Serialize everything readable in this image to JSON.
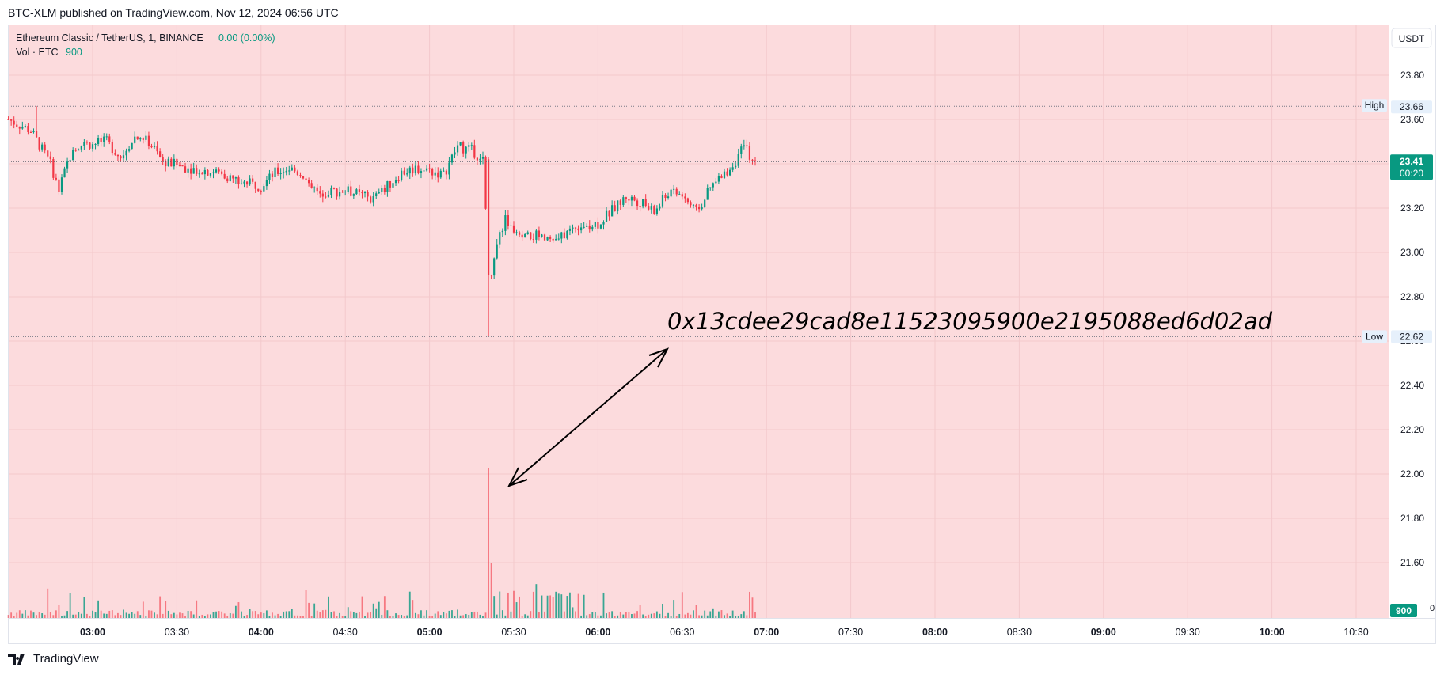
{
  "header": {
    "published": "BTC-XLM published on TradingView.com, Nov 12, 2024 06:56 UTC"
  },
  "legend": {
    "symbol": "Ethereum Classic / TetherUS, 1, BINANCE",
    "change": "0.00 (0.00%)",
    "volume_label": "Vol · ETC",
    "volume_value": "900"
  },
  "currency": "USDT",
  "footer": {
    "brand": "TradingView"
  },
  "annotation": {
    "text": "0x13cdee29cad8e11523095900e2195088ed6d02ad"
  },
  "colors": {
    "up": "#089981",
    "down": "#f23645",
    "background": "#fcdbdd",
    "accent": "#2962ff"
  },
  "chart_data": {
    "type": "candlestick",
    "interval": "1 minute",
    "price_axis": {
      "ylim": [
        21.4,
        23.93
      ],
      "ticks": [
        "23.80",
        "23.60",
        "23.40",
        "23.20",
        "23.00",
        "22.80",
        "22.60",
        "22.40",
        "22.20",
        "22.00",
        "21.80",
        "21.60"
      ],
      "bottom_label": "0"
    },
    "time_axis": {
      "ticks": [
        "03:00",
        "03:30",
        "04:00",
        "04:30",
        "05:00",
        "05:30",
        "06:00",
        "06:30",
        "07:00",
        "07:30",
        "08:00",
        "08:30",
        "09:00",
        "09:30",
        "10:00",
        "10:30"
      ]
    },
    "markers": {
      "high": {
        "label": "High",
        "value": "23.66"
      },
      "low": {
        "label": "Low",
        "value": "22.62"
      }
    },
    "last_price": {
      "value": "23.41",
      "countdown": "00:20"
    },
    "volume_last": "900",
    "price_path": [
      [
        "02:30",
        23.6
      ],
      [
        "02:38",
        23.55
      ],
      [
        "02:45",
        23.4
      ],
      [
        "02:48",
        23.28
      ],
      [
        "02:53",
        23.48
      ],
      [
        "03:05",
        23.5
      ],
      [
        "03:10",
        23.43
      ],
      [
        "03:15",
        23.52
      ],
      [
        "03:20",
        23.5
      ],
      [
        "03:25",
        23.41
      ],
      [
        "03:35",
        23.38
      ],
      [
        "03:45",
        23.36
      ],
      [
        "03:52",
        23.32
      ],
      [
        "04:00",
        23.3
      ],
      [
        "04:05",
        23.36
      ],
      [
        "04:10",
        23.38
      ],
      [
        "04:15",
        23.35
      ],
      [
        "04:20",
        23.27
      ],
      [
        "04:30",
        23.28
      ],
      [
        "04:40",
        23.24
      ],
      [
        "04:45",
        23.3
      ],
      [
        "04:50",
        23.36
      ],
      [
        "04:55",
        23.38
      ],
      [
        "05:00",
        23.37
      ],
      [
        "05:05",
        23.35
      ],
      [
        "05:10",
        23.48
      ],
      [
        "05:15",
        23.46
      ],
      [
        "05:19",
        23.42
      ],
      [
        "05:21",
        22.95
      ],
      [
        "05:22",
        22.9
      ],
      [
        "05:24",
        23.05
      ],
      [
        "05:27",
        23.15
      ],
      [
        "05:32",
        23.06
      ],
      [
        "05:40",
        23.08
      ],
      [
        "05:45",
        23.05
      ],
      [
        "05:52",
        23.12
      ],
      [
        "06:00",
        23.13
      ],
      [
        "06:05",
        23.19
      ],
      [
        "06:10",
        23.25
      ],
      [
        "06:15",
        23.23
      ],
      [
        "06:20",
        23.18
      ],
      [
        "06:25",
        23.27
      ],
      [
        "06:30",
        23.26
      ],
      [
        "06:35",
        23.18
      ],
      [
        "06:40",
        23.29
      ],
      [
        "06:45",
        23.35
      ],
      [
        "06:50",
        23.43
      ],
      [
        "06:52",
        23.48
      ],
      [
        "06:55",
        23.42
      ],
      [
        "06:56",
        23.41
      ]
    ]
  }
}
